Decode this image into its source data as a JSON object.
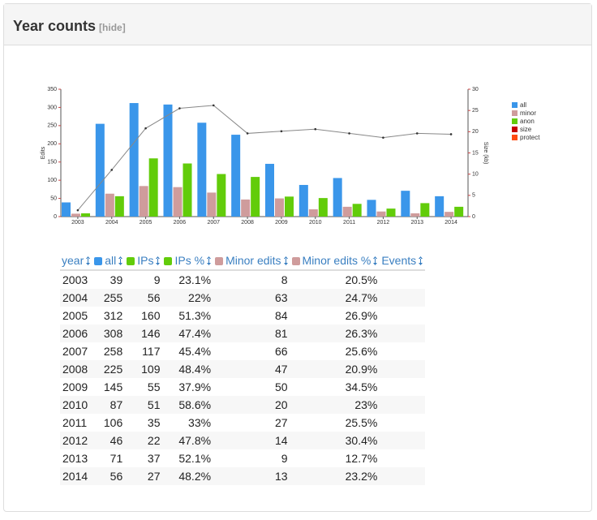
{
  "header": {
    "title": "Year counts",
    "toggle": "[hide]"
  },
  "chart_data": {
    "type": "bar",
    "y_label": "Edits",
    "y2_label": "Size (kb)",
    "categories": [
      "2003",
      "2004",
      "2005",
      "2006",
      "2007",
      "2008",
      "2009",
      "2010",
      "2011",
      "2012",
      "2013",
      "2014"
    ],
    "series": [
      {
        "name": "all",
        "color": "#3a96ea",
        "values": [
          39,
          255,
          312,
          308,
          258,
          225,
          145,
          87,
          106,
          46,
          71,
          56
        ]
      },
      {
        "name": "minor",
        "color": "#cf9c9c",
        "values": [
          8,
          63,
          84,
          81,
          66,
          47,
          50,
          20,
          27,
          14,
          9,
          13
        ]
      },
      {
        "name": "anon",
        "color": "#62cc0a",
        "values": [
          9,
          56,
          160,
          146,
          117,
          109,
          55,
          51,
          35,
          22,
          37,
          27
        ]
      },
      {
        "name": "size",
        "color": "#c40000",
        "type": "line",
        "axis": "y2",
        "values": [
          1.5,
          11,
          20.8,
          25.5,
          26.2,
          19.6,
          20.1,
          20.6,
          19.6,
          18.6,
          19.6,
          19.4
        ]
      },
      {
        "name": "protect",
        "color": "#ff4a10",
        "type": "line",
        "axis": "y2",
        "values": [
          null,
          null,
          null,
          null,
          null,
          null,
          null,
          null,
          null,
          null,
          null,
          null
        ]
      }
    ],
    "ylim": [
      0,
      350
    ],
    "yticks": [
      0,
      50,
      100,
      150,
      200,
      250,
      300,
      350
    ],
    "y2lim": [
      0,
      30
    ],
    "y2ticks": [
      0,
      5,
      10,
      15,
      20,
      25,
      30
    ],
    "legend": "right"
  },
  "table": {
    "headers": [
      "year",
      "all",
      "IPs",
      "IPs %",
      "Minor edits",
      "Minor edits %",
      "Events"
    ],
    "rows": [
      [
        "2003",
        "39",
        "9",
        "23.1%",
        "8",
        "20.5%"
      ],
      [
        "2004",
        "255",
        "56",
        "22%",
        "63",
        "24.7%"
      ],
      [
        "2005",
        "312",
        "160",
        "51.3%",
        "84",
        "26.9%"
      ],
      [
        "2006",
        "308",
        "146",
        "47.4%",
        "81",
        "26.3%"
      ],
      [
        "2007",
        "258",
        "117",
        "45.4%",
        "66",
        "25.6%"
      ],
      [
        "2008",
        "225",
        "109",
        "48.4%",
        "47",
        "20.9%"
      ],
      [
        "2009",
        "145",
        "55",
        "37.9%",
        "50",
        "34.5%"
      ],
      [
        "2010",
        "87",
        "51",
        "58.6%",
        "20",
        "23%"
      ],
      [
        "2011",
        "106",
        "35",
        "33%",
        "27",
        "25.5%"
      ],
      [
        "2012",
        "46",
        "22",
        "47.8%",
        "14",
        "30.4%"
      ],
      [
        "2013",
        "71",
        "37",
        "52.1%",
        "9",
        "12.7%"
      ],
      [
        "2014",
        "56",
        "27",
        "48.2%",
        "13",
        "23.2%"
      ]
    ]
  }
}
